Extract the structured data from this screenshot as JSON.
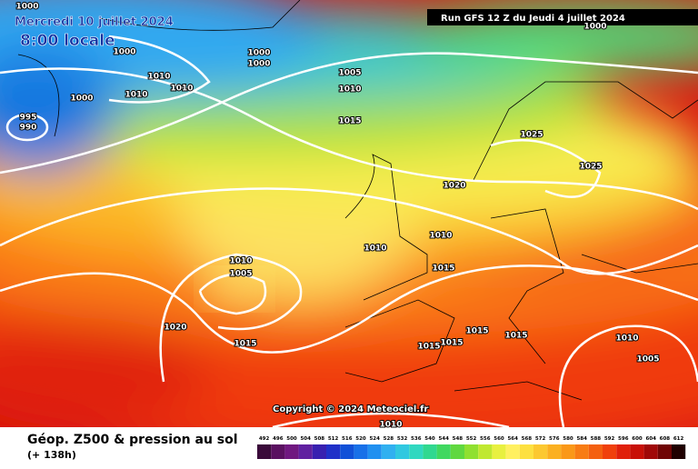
{
  "header": {
    "valid_date": "Mercredi 10 juillet 2024",
    "local_time": "8:00 locale",
    "run": "Run GFS 12 Z du Jeudi 4 juillet 2024"
  },
  "copyright": "Copyright © 2024 Meteociel.fr",
  "isobar_labels": [
    "1000",
    "1000",
    "1010",
    "1010",
    "1010",
    "1000",
    "995",
    "990",
    "1000",
    "1000",
    "1005",
    "1010",
    "1015",
    "1025",
    "1025",
    "1020",
    "1010",
    "1010",
    "1015",
    "1010",
    "1005",
    "1020",
    "1015",
    "1015",
    "1015",
    "1015",
    "1015",
    "1010",
    "1005",
    "1010",
    "1000"
  ],
  "legend": {
    "title": "Géop. Z500 & pression au sol",
    "forecast": "(+ 138h)",
    "levels": [
      492,
      496,
      500,
      504,
      508,
      512,
      516,
      520,
      524,
      528,
      532,
      536,
      540,
      544,
      548,
      552,
      556,
      560,
      564,
      568,
      572,
      576,
      580,
      584,
      588,
      592,
      596,
      600,
      604,
      608,
      612
    ]
  }
}
